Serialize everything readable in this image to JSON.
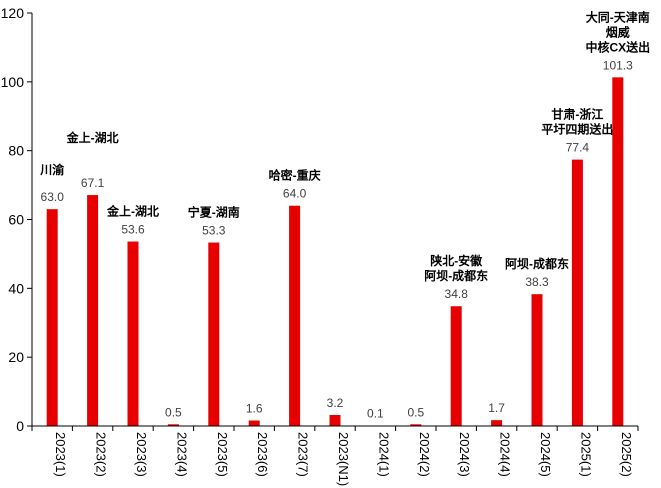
{
  "chart_data": {
    "type": "bar",
    "title": "",
    "xlabel": "",
    "ylabel": "",
    "ylim": [
      0,
      120
    ],
    "yticks": [
      0,
      20,
      40,
      60,
      80,
      100,
      120
    ],
    "grid": false,
    "legend": "none",
    "bar_color": "#e60000",
    "categories": [
      "2023(1)",
      "2023(2)",
      "2023(3)",
      "2023(4)",
      "2023(5)",
      "2023(6)",
      "2023(7)",
      "2023(N1)",
      "2024(1)",
      "2024(2)",
      "2024(3)",
      "2024(4)",
      "2024(5)",
      "2025(1)",
      "2025(2)"
    ],
    "values": [
      63.0,
      67.1,
      53.6,
      0.5,
      53.3,
      1.6,
      64.0,
      3.2,
      0.1,
      0.5,
      34.8,
      1.7,
      38.3,
      77.4,
      101.3
    ],
    "value_labels": [
      "63.0",
      "67.1",
      "53.6",
      "0.5",
      "53.3",
      "1.6",
      "64.0",
      "3.2",
      "0.1",
      "0.5",
      "34.8",
      "1.7",
      "38.3",
      "77.4",
      "101.3"
    ],
    "annotations": [
      {
        "index": 0,
        "lines": [
          "川渝"
        ]
      },
      {
        "index": 1,
        "lines": [
          "金上-湖北"
        ]
      },
      {
        "index": 2,
        "lines": [
          "金上-湖北"
        ]
      },
      {
        "index": 4,
        "lines": [
          "宁夏-湖南"
        ]
      },
      {
        "index": 6,
        "lines": [
          "哈密-重庆"
        ]
      },
      {
        "index": 10,
        "lines": [
          "陕北-安徽",
          "阿坝-成都东"
        ]
      },
      {
        "index": 12,
        "lines": [
          "阿坝-成都东"
        ]
      },
      {
        "index": 13,
        "lines": [
          "甘肃-浙江",
          "平圩四期送出"
        ]
      },
      {
        "index": 14,
        "lines": [
          "大同-天津南",
          "烟威",
          "中核CX送出"
        ]
      }
    ]
  }
}
